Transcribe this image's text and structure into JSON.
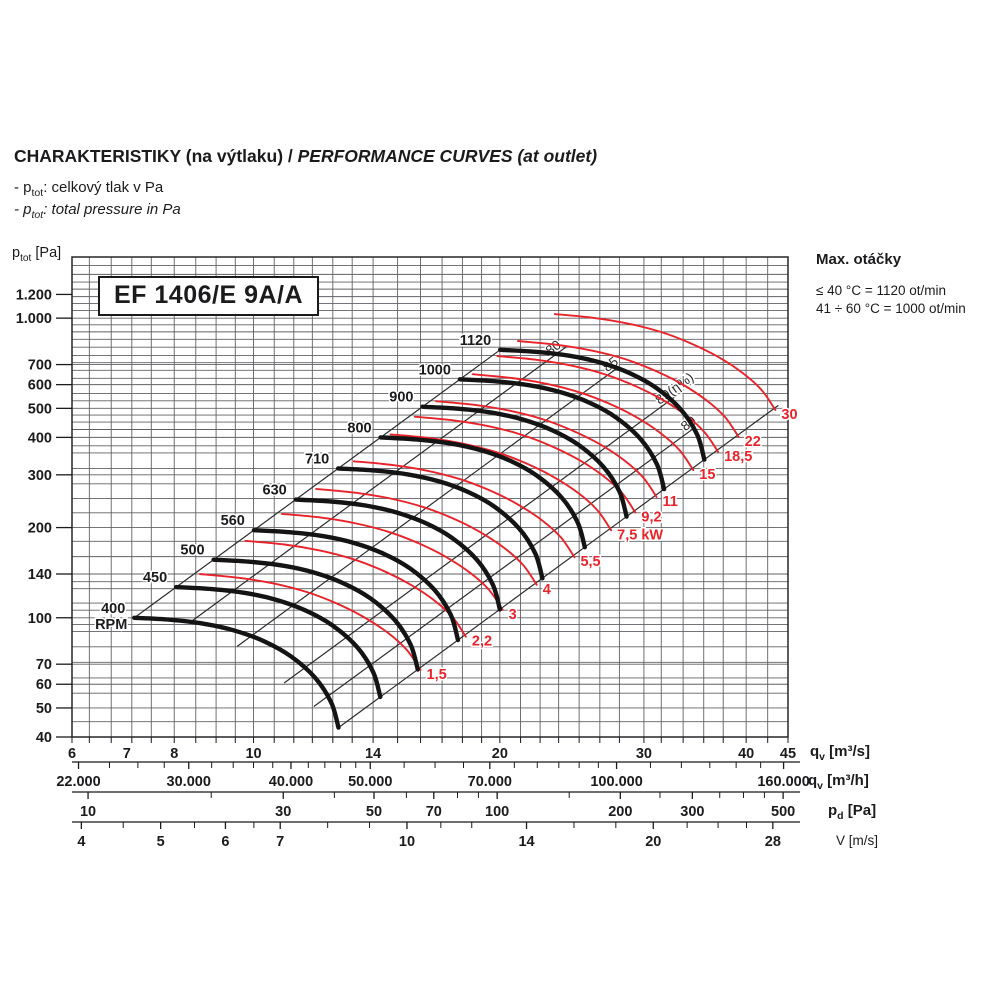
{
  "page": {
    "heading_part1": "CHARAKTERISTIKY (na výtlaku) / ",
    "heading_part2": "PERFORMANCE CURVES (at outlet)",
    "bullet1": {
      "pre": "- p",
      "sub": "tot",
      "post": ": celkový tlak v Pa"
    },
    "bullet2": {
      "pre": "- p",
      "sub": "tot",
      "post": ": total pressure in Pa"
    },
    "y_axis_unit": {
      "pre": "p",
      "sub": "tot",
      "post": " [Pa]"
    },
    "max_speed": {
      "title": "Max. otáčky",
      "line1": "≤ 40 °C = 1120 ot/min",
      "line2": "41 ÷ 60 °C = 1000 ot/min"
    },
    "model_label": "EF 1406/E 9A/A",
    "axis_units": {
      "m3s": {
        "pre": "q",
        "sub": "v",
        "post": " [m³/s]"
      },
      "m3h": {
        "pre": "q",
        "sub": "v",
        "post": " [m³/h]"
      },
      "pd": {
        "pre": "p",
        "sub": "d",
        "post": " [Pa]"
      },
      "v": {
        "pre": "",
        "sub": "",
        "post": "V [m/s]"
      }
    }
  },
  "chart_data": {
    "type": "line",
    "title": "EF 1406/E 9A/A",
    "colors": {
      "rpm_curve": "#141414",
      "power_curve": "#e8232a",
      "grid": "#616165",
      "eff_line": "#2c2c2e",
      "ink": "#1b1b1d"
    },
    "x_axis": {
      "label": "qv [m³/s]",
      "min": 6,
      "max": 45,
      "labeled_ticks": [
        6,
        7,
        8,
        10,
        14,
        20,
        30,
        40,
        45
      ],
      "gridlines": [
        6,
        6.3,
        6.7,
        7.1,
        7.5,
        8,
        8.5,
        9,
        9.5,
        10,
        10.6,
        11.2,
        11.8,
        12.5,
        13.2,
        14,
        15,
        16,
        17,
        18,
        19,
        20,
        21.2,
        22.4,
        23.6,
        25,
        26.5,
        28,
        30,
        31.5,
        33.5,
        35.5,
        37.5,
        40,
        42.5,
        45
      ]
    },
    "y_axis": {
      "label": "ptot [Pa]",
      "min": 40,
      "max": 1600,
      "labeled_ticks": [
        {
          "v": 40,
          "t": "40"
        },
        {
          "v": 50,
          "t": "50"
        },
        {
          "v": 60,
          "t": "60"
        },
        {
          "v": 70,
          "t": "70"
        },
        {
          "v": 100,
          "t": "100"
        },
        {
          "v": 140,
          "t": "140"
        },
        {
          "v": 200,
          "t": "200"
        },
        {
          "v": 300,
          "t": "300"
        },
        {
          "v": 400,
          "t": "400"
        },
        {
          "v": 500,
          "t": "500"
        },
        {
          "v": 600,
          "t": "600"
        },
        {
          "v": 700,
          "t": "700"
        },
        {
          "v": 1000,
          "t": "1.000"
        },
        {
          "v": 1200,
          "t": "1.200"
        }
      ],
      "gridlines": [
        40,
        45,
        50,
        56,
        60,
        63,
        70,
        71,
        80,
        90,
        95,
        100,
        106,
        112,
        125,
        132,
        140,
        160,
        180,
        200,
        224,
        250,
        280,
        300,
        315,
        355,
        375,
        400,
        425,
        450,
        475,
        500,
        530,
        560,
        600,
        630,
        670,
        700,
        710,
        750,
        800,
        850,
        900,
        950,
        1000,
        1060,
        1120,
        1180,
        1250,
        1320,
        1400,
        1500,
        1600
      ]
    },
    "secondary_axes": {
      "m3h": {
        "unit": "qv [m³/h]",
        "factor": 3600,
        "labeled": [
          {
            "v": 22000,
            "t": "22.000"
          },
          {
            "v": 30000,
            "t": "30.000"
          },
          {
            "v": 40000,
            "t": "40.000"
          },
          {
            "v": 50000,
            "t": "50.000"
          },
          {
            "v": 70000,
            "t": "70.000"
          },
          {
            "v": 100000,
            "t": "100.000"
          },
          {
            "v": 160000,
            "t": "160.000"
          }
        ],
        "minor": [
          24000,
          26000,
          28000,
          32000,
          34000,
          36000,
          38000,
          42000,
          44000,
          46000,
          48000,
          55000,
          60000,
          65000,
          75000,
          80000,
          85000,
          90000,
          95000,
          110000,
          120000,
          130000,
          140000,
          150000
        ]
      },
      "pd": {
        "unit": "pd [Pa]",
        "k": 1.985,
        "labeled": [
          10,
          30,
          50,
          70,
          100,
          200,
          300,
          500
        ],
        "minor": [
          20,
          40,
          60,
          80,
          90,
          150,
          250,
          350,
          400,
          450
        ]
      },
      "v": {
        "unit": "V [m/s]",
        "k": 1.54,
        "labeled": [
          4,
          5,
          6,
          7,
          10,
          14,
          20,
          28
        ],
        "minor": [
          4.5,
          5.5,
          6.5,
          8,
          9,
          11,
          12,
          16,
          18,
          22,
          24,
          26
        ]
      }
    },
    "rpm_curves": {
      "rpm_values": [
        400,
        450,
        500,
        560,
        630,
        710,
        800,
        900,
        1000,
        1120
      ],
      "base_rpm": 400,
      "q_scale": "rpm/400",
      "p_scale": "(rpm/400)^2",
      "base_curve_q_p": [
        [
          7.15,
          100
        ],
        [
          7.9,
          98.5
        ],
        [
          8.7,
          95.5
        ],
        [
          9.5,
          90.5
        ],
        [
          10.3,
          83.5
        ],
        [
          11.1,
          74.5
        ],
        [
          11.9,
          63
        ],
        [
          12.45,
          52
        ],
        [
          12.7,
          43
        ]
      ],
      "rpm_unit_label": "RPM"
    },
    "power_curves_kw": {
      "values": [
        1.5,
        2.2,
        3,
        4,
        5.5,
        7.5,
        9.2,
        11,
        15,
        18.5,
        22,
        30
      ],
      "labels": [
        "1,5",
        "2,2",
        "3",
        "4",
        "5,5",
        "7,5 kW",
        "9,2",
        "11",
        "15",
        "18,5",
        "22",
        "30"
      ],
      "base_kw": 1.5,
      "q_scale": "(kW/1.5)^(1/3)",
      "p_scale": "(kW/1.5)^(2/3)",
      "base_curve_q_p": [
        [
          8.6,
          140
        ],
        [
          9.6,
          136
        ],
        [
          10.6,
          130
        ],
        [
          11.6,
          122
        ],
        [
          12.6,
          112
        ],
        [
          13.6,
          101
        ],
        [
          14.6,
          89
        ],
        [
          15.4,
          78
        ],
        [
          16.0,
          67
        ]
      ]
    },
    "efficiency_lines": [
      {
        "label": "80",
        "c": 1.38,
        "q1": 8.4,
        "q2": 24.2,
        "label_q": 22.9
      },
      {
        "label": "85",
        "c": 0.88,
        "q1": 9.55,
        "q2": 28.0,
        "label_q": 26.9
      },
      {
        "label": "89(η%)",
        "c": 0.51,
        "q1": 10.9,
        "q2": 33.0,
        "label_q": 32.2
      },
      {
        "label": "80",
        "c": 0.36,
        "q1": 11.85,
        "q2": 34.6,
        "label_q": 33.5
      }
    ],
    "boundary_lines": {
      "upper": {
        "c": 1.956,
        "q1": 7.15,
        "q2": 20.02
      },
      "lower": {
        "c": 0.2666,
        "q1": 12.7,
        "q2": 43.8
      }
    }
  }
}
